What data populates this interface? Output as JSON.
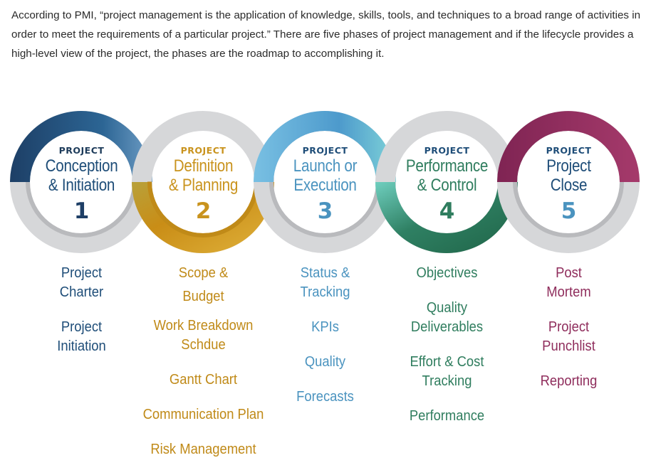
{
  "intro": "According to PMI, “project management is the application of knowledge, skills, tools, and techniques to a broad range of activities in order to meet the requirements of a particular project.” There are five phases of project management and if the lifecycle provides a high-level view of the project, the phases are the roadmap to accomplishing it.",
  "phases": [
    {
      "label": "PROJECT",
      "title_line1": "Conception",
      "title_line2": "& Initiation",
      "number": "1",
      "color": "#1e4d78",
      "items": [
        [
          "Project",
          "Charter"
        ],
        [
          "Project",
          "Initiation"
        ]
      ]
    },
    {
      "label": "PROJECT",
      "title_line1": "Definition",
      "title_line2": "& Planning",
      "number": "2",
      "color": "#c9931d",
      "items": [
        [
          "Scope &",
          "Budget"
        ],
        [
          "Work Breakdown",
          "Schdue"
        ],
        [
          "Gantt Chart"
        ],
        [
          "Communication Plan"
        ],
        [
          "Risk Management"
        ]
      ]
    },
    {
      "label": "PROJECT",
      "title_line1": "Launch or",
      "title_line2": "Execution",
      "number": "3",
      "color": "#4a93bf",
      "items": [
        [
          "Status &",
          "Tracking"
        ],
        [
          "KPIs"
        ],
        [
          "Quality"
        ],
        [
          "Forecasts"
        ]
      ]
    },
    {
      "label": "PROJECT",
      "title_line1": "Performance",
      "title_line2": "& Control",
      "number": "4",
      "color": "#2f7d5e",
      "items": [
        [
          "Objectives"
        ],
        [
          "Quality",
          "Deliverables"
        ],
        [
          "Effort & Cost",
          "Tracking"
        ],
        [
          "Performance"
        ]
      ]
    },
    {
      "label": "PROJECT",
      "title_line1": "Project",
      "title_line2": "Close",
      "number": "5",
      "color": "#8f2d5c",
      "items": [
        [
          "Post",
          "Mortem"
        ],
        [
          "Project",
          "Punchlist"
        ],
        [
          "Reporting"
        ]
      ]
    }
  ]
}
